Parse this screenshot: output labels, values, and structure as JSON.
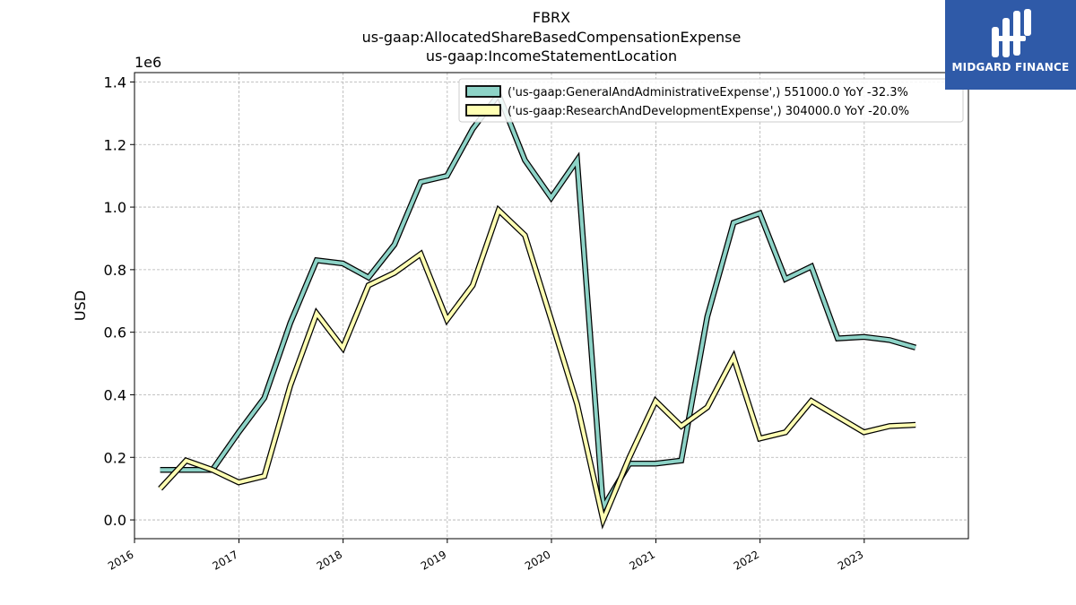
{
  "chart_data": {
    "type": "line",
    "title_lines": [
      "FBRX",
      "us-gaap:AllocatedShareBasedCompensationExpense",
      "us-gaap:IncomeStatementLocation"
    ],
    "ylabel": "USD",
    "y_offset_label": "1e6",
    "y_scale": 1000000,
    "ylim": [
      -0.06,
      1.43
    ],
    "xlim": [
      "2016-01-01",
      "2024-01-01"
    ],
    "y_ticks": [
      "0.0",
      "0.2",
      "0.4",
      "0.6",
      "0.8",
      "1.0",
      "1.2",
      "1.4"
    ],
    "x_ticks": [
      "2016",
      "2017",
      "2018",
      "2019",
      "2020",
      "2021",
      "2022",
      "2023"
    ],
    "grid": true,
    "legend_position": "top-right",
    "series": [
      {
        "name": "('us-gaap:GeneralAndAdministrativeExpense',) 551000.0 YoY -32.3%",
        "color": "#8dd3c7",
        "points": [
          [
            "2016-03-31",
            0.16
          ],
          [
            "2016-06-30",
            0.16
          ],
          [
            "2016-09-30",
            0.16
          ],
          [
            "2016-12-31",
            0.28
          ],
          [
            "2017-03-31",
            0.39
          ],
          [
            "2017-06-30",
            0.63
          ],
          [
            "2017-09-30",
            0.83
          ],
          [
            "2017-12-31",
            0.82
          ],
          [
            "2018-03-31",
            0.775
          ],
          [
            "2018-06-30",
            0.88
          ],
          [
            "2018-09-30",
            1.08
          ],
          [
            "2018-12-31",
            1.1
          ],
          [
            "2019-03-31",
            1.25
          ],
          [
            "2019-06-30",
            1.36
          ],
          [
            "2019-09-30",
            1.15
          ],
          [
            "2019-12-31",
            1.03
          ],
          [
            "2020-03-31",
            1.15
          ],
          [
            "2020-06-30",
            0.04
          ],
          [
            "2020-09-30",
            0.18
          ],
          [
            "2020-12-31",
            0.18
          ],
          [
            "2021-03-31",
            0.19
          ],
          [
            "2021-06-30",
            0.65
          ],
          [
            "2021-09-30",
            0.95
          ],
          [
            "2021-12-31",
            0.98
          ],
          [
            "2022-03-31",
            0.77
          ],
          [
            "2022-06-30",
            0.81
          ],
          [
            "2022-09-30",
            0.58
          ],
          [
            "2022-12-31",
            0.585
          ],
          [
            "2023-03-31",
            0.575
          ],
          [
            "2023-06-30",
            0.551
          ]
        ]
      },
      {
        "name": "('us-gaap:ResearchAndDevelopmentExpense',) 304000.0 YoY -20.0%",
        "color": "#ffffb3",
        "points": [
          [
            "2016-03-31",
            0.1
          ],
          [
            "2016-06-30",
            0.19
          ],
          [
            "2016-09-30",
            0.16
          ],
          [
            "2016-12-31",
            0.12
          ],
          [
            "2017-03-31",
            0.14
          ],
          [
            "2017-06-30",
            0.43
          ],
          [
            "2017-09-30",
            0.66
          ],
          [
            "2017-12-31",
            0.55
          ],
          [
            "2018-03-31",
            0.75
          ],
          [
            "2018-06-30",
            0.79
          ],
          [
            "2018-09-30",
            0.85
          ],
          [
            "2018-12-31",
            0.64
          ],
          [
            "2019-03-31",
            0.75
          ],
          [
            "2019-06-30",
            0.99
          ],
          [
            "2019-09-30",
            0.91
          ],
          [
            "2019-12-31",
            0.64
          ],
          [
            "2020-03-31",
            0.37
          ],
          [
            "2020-06-30",
            0.0
          ],
          [
            "2020-09-30",
            0.2
          ],
          [
            "2020-12-31",
            0.38
          ],
          [
            "2021-03-31",
            0.3
          ],
          [
            "2021-06-30",
            0.36
          ],
          [
            "2021-09-30",
            0.52
          ],
          [
            "2021-12-31",
            0.26
          ],
          [
            "2022-03-31",
            0.28
          ],
          [
            "2022-06-30",
            0.38
          ],
          [
            "2022-09-30",
            0.33
          ],
          [
            "2022-12-31",
            0.28
          ],
          [
            "2023-03-31",
            0.3
          ],
          [
            "2023-06-30",
            0.304
          ]
        ]
      }
    ]
  },
  "logo": {
    "text": "MIDGARD FINANCE",
    "background": "#2f5aa8"
  }
}
